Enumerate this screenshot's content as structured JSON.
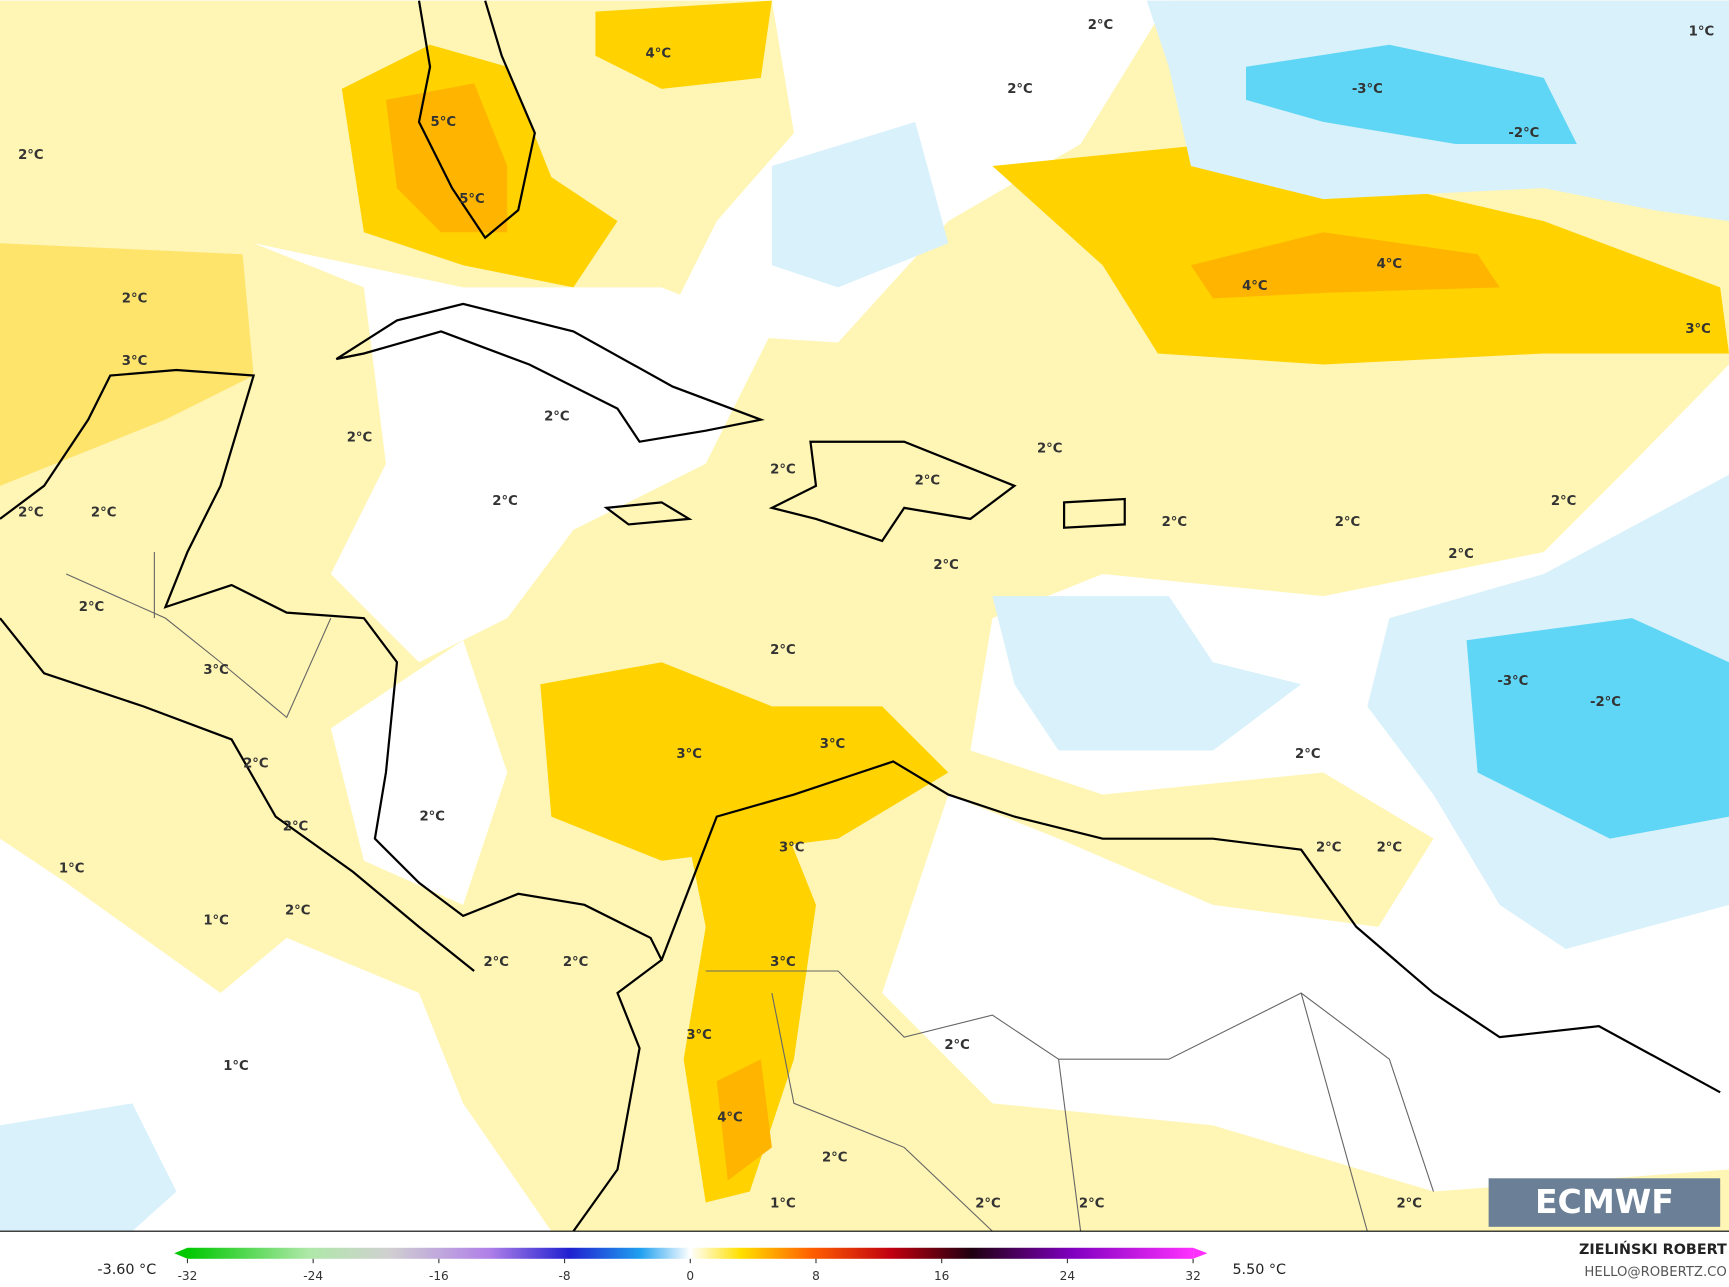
{
  "map": {
    "labels": [
      "2°C",
      "4°C",
      "2°C",
      "1°C",
      "-3°C",
      "-2°C",
      "5°C",
      "5°C",
      "2°C",
      "2°C",
      "4°C",
      "4°C",
      "3°C",
      "3°C",
      "2°C",
      "2°C",
      "2°C",
      "2°C",
      "2°C",
      "2°C",
      "2°C",
      "2°C",
      "2°C",
      "2°C",
      "2°C",
      "2°C",
      "2°C",
      "2°C",
      "3°C",
      "2°C",
      "-3°C",
      "-2°C",
      "3°C",
      "3°C",
      "2°C",
      "2°C",
      "2°C",
      "2°C",
      "3°C",
      "2°C",
      "2°C",
      "1°C",
      "1°C",
      "2°C",
      "2°C",
      "2°C",
      "3°C",
      "3°C",
      "2°C",
      "1°C",
      "4°C",
      "2°C",
      "1°C",
      "2°C",
      "2°C",
      "2°C"
    ]
  },
  "colorbar": {
    "min_label": "-3.60 °C",
    "max_label": "5.50 °C",
    "ticks": [
      -32,
      -24,
      -16,
      -8,
      0,
      8,
      16,
      24,
      32
    ],
    "range": [
      -32,
      32
    ]
  },
  "credit": {
    "author": "ZIELIŃSKI ROBERT",
    "contact": "HELLO@ROBERTZ.CO"
  },
  "logo": "ECMWF"
}
